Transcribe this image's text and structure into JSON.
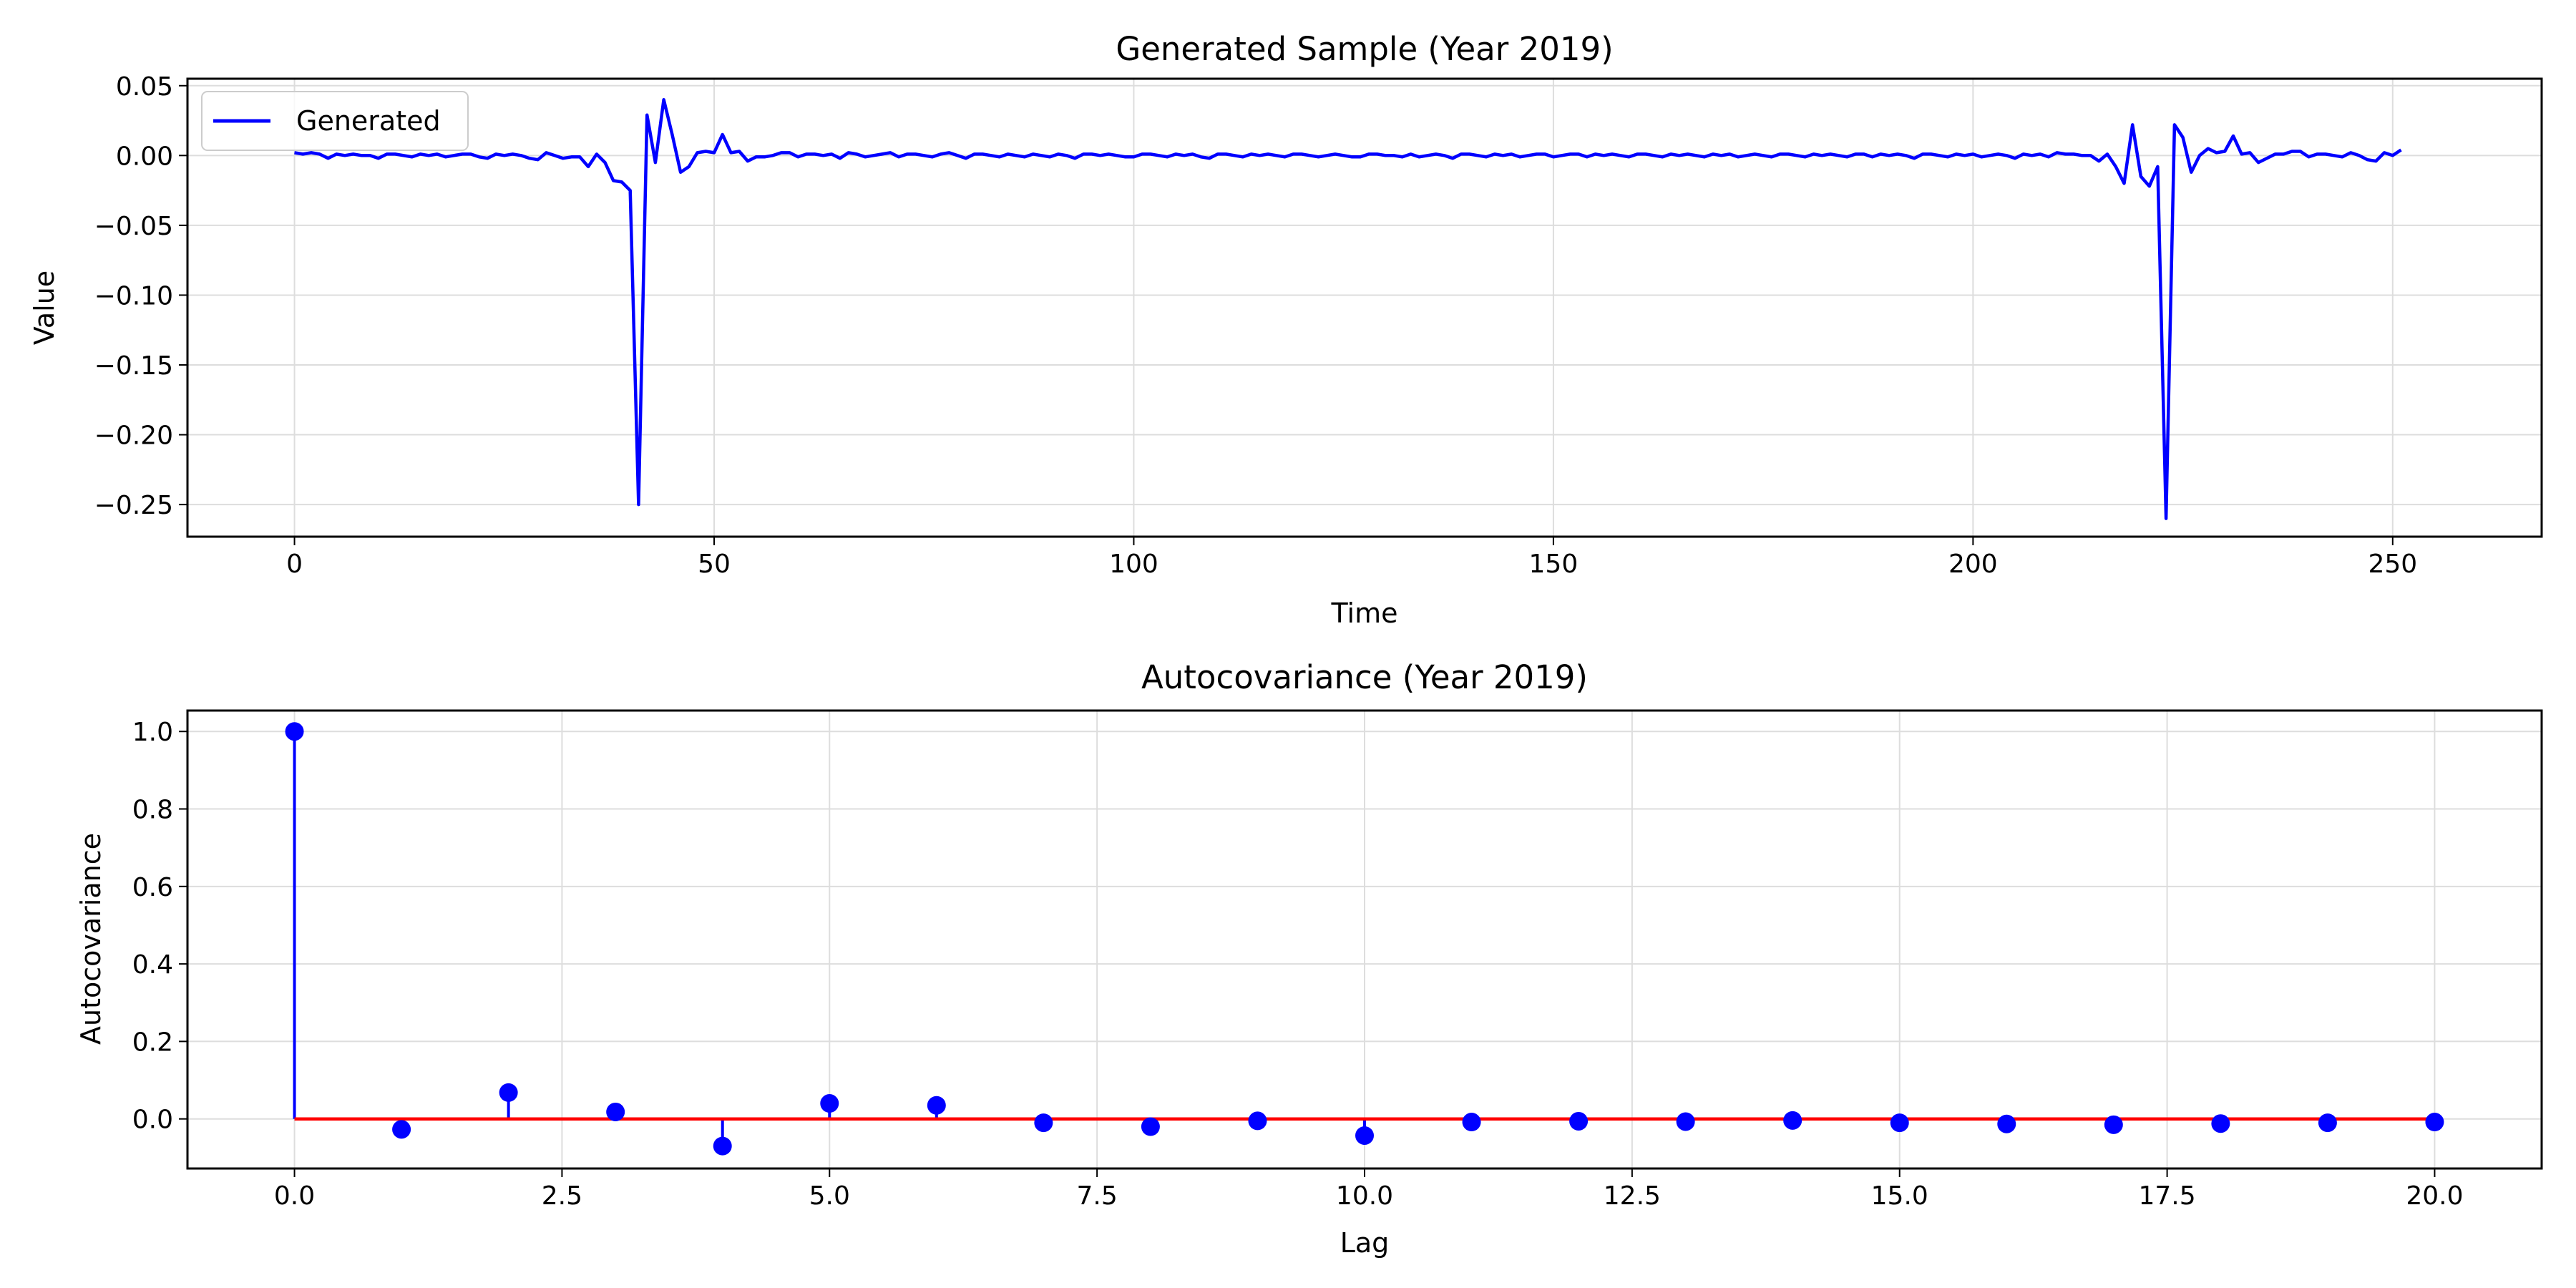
{
  "chart_data": [
    {
      "type": "line",
      "title": "Generated Sample (Year 2019)",
      "xlabel": "Time",
      "ylabel": "Value",
      "xlim": [
        -12.75,
        267.75
      ],
      "ylim": [
        -0.273,
        0.055
      ],
      "xticks": [
        0,
        50,
        100,
        150,
        200,
        250
      ],
      "yticks": [
        -0.25,
        -0.2,
        -0.15,
        -0.1,
        -0.05,
        0.0,
        0.05
      ],
      "xtick_labels": [
        "0",
        "50",
        "100",
        "150",
        "200",
        "250"
      ],
      "ytick_labels": [
        "−0.25",
        "−0.20",
        "−0.15",
        "−0.10",
        "−0.05",
        "0.00",
        "0.05"
      ],
      "grid": true,
      "legend": {
        "location": "upper-left",
        "entries": [
          "Generated"
        ]
      },
      "colors": {
        "line": "#0000ff"
      },
      "series": [
        {
          "name": "Generated",
          "x_start": 0,
          "x_step": 1,
          "values": [
            0.002,
            0.001,
            0.002,
            0.001,
            -0.002,
            0.001,
            0.0,
            0.001,
            0.0,
            0.0,
            -0.002,
            0.001,
            0.001,
            0.0,
            -0.001,
            0.001,
            0.0,
            0.001,
            -0.001,
            0.0,
            0.001,
            0.001,
            -0.001,
            -0.002,
            0.001,
            0.0,
            0.001,
            0.0,
            -0.002,
            -0.003,
            0.002,
            0.0,
            -0.002,
            -0.001,
            -0.001,
            -0.008,
            0.001,
            -0.005,
            -0.018,
            -0.019,
            -0.025,
            -0.25,
            0.029,
            -0.005,
            0.04,
            0.015,
            -0.012,
            -0.008,
            0.002,
            0.003,
            0.002,
            0.015,
            0.002,
            0.003,
            -0.004,
            -0.001,
            -0.001,
            0.0,
            0.002,
            0.002,
            -0.001,
            0.001,
            0.001,
            0.0,
            0.001,
            -0.002,
            0.002,
            0.001,
            -0.001,
            0.0,
            0.001,
            0.002,
            -0.001,
            0.001,
            0.001,
            0.0,
            -0.001,
            0.001,
            0.002,
            0.0,
            -0.002,
            0.001,
            0.001,
            0.0,
            -0.001,
            0.001,
            0.0,
            -0.001,
            0.001,
            0.0,
            -0.001,
            0.001,
            0.0,
            -0.002,
            0.001,
            0.001,
            0.0,
            0.001,
            0.0,
            -0.001,
            -0.001,
            0.001,
            0.001,
            0.0,
            -0.001,
            0.001,
            0.0,
            0.001,
            -0.001,
            -0.002,
            0.001,
            0.001,
            0.0,
            -0.001,
            0.001,
            0.0,
            0.001,
            0.0,
            -0.001,
            0.001,
            0.001,
            0.0,
            -0.001,
            0.0,
            0.001,
            0.0,
            -0.001,
            -0.001,
            0.001,
            0.001,
            0.0,
            0.0,
            -0.001,
            0.001,
            -0.001,
            0.0,
            0.001,
            0.0,
            -0.002,
            0.001,
            0.001,
            0.0,
            -0.001,
            0.001,
            0.0,
            0.001,
            -0.001,
            0.0,
            0.001,
            0.001,
            -0.001,
            0.0,
            0.001,
            0.001,
            -0.001,
            0.001,
            0.0,
            0.001,
            0.0,
            -0.001,
            0.001,
            0.001,
            0.0,
            -0.001,
            0.001,
            0.0,
            0.001,
            0.0,
            -0.001,
            0.001,
            0.0,
            0.001,
            -0.001,
            0.0,
            0.001,
            0.0,
            -0.001,
            0.001,
            0.001,
            0.0,
            -0.001,
            0.001,
            0.0,
            0.001,
            0.0,
            -0.001,
            0.001,
            0.001,
            -0.001,
            0.001,
            0.0,
            0.001,
            0.0,
            -0.002,
            0.001,
            0.001,
            0.0,
            -0.001,
            0.001,
            0.0,
            0.001,
            -0.001,
            0.0,
            0.001,
            0.0,
            -0.002,
            0.001,
            0.0,
            0.001,
            -0.001,
            0.002,
            0.001,
            0.001,
            0.0,
            0.0,
            -0.004,
            0.001,
            -0.008,
            -0.02,
            0.022,
            -0.015,
            -0.022,
            -0.008,
            -0.26,
            0.022,
            0.013,
            -0.012,
            0.0,
            0.005,
            0.002,
            0.003,
            0.014,
            0.001,
            0.002,
            -0.005,
            -0.002,
            0.001,
            0.001,
            0.003,
            0.003,
            -0.001,
            0.001,
            0.001,
            0.0,
            -0.001,
            0.002,
            0.0,
            -0.003,
            -0.004,
            0.002,
            0.0,
            0.004
          ]
        }
      ]
    },
    {
      "type": "stem",
      "title": "Autocovariance (Year 2019)",
      "xlabel": "Lag",
      "ylabel": "Autocovariance",
      "xlim": [
        -1.0,
        21.0
      ],
      "ylim": [
        -0.128,
        1.054
      ],
      "xticks": [
        0,
        2.5,
        5,
        7.5,
        10,
        12.5,
        15,
        17.5,
        20
      ],
      "yticks": [
        0,
        0.2,
        0.4,
        0.6,
        0.8,
        1.0
      ],
      "xtick_labels": [
        "0.0",
        "2.5",
        "5.0",
        "7.5",
        "10.0",
        "12.5",
        "15.0",
        "17.5",
        "20.0"
      ],
      "ytick_labels": [
        "0.0",
        "0.2",
        "0.4",
        "0.6",
        "0.8",
        "1.0"
      ],
      "grid": true,
      "colors": {
        "stem": "#0000ff",
        "marker": "#0000ff",
        "baseline": "#ff0000"
      },
      "x": [
        0,
        1,
        2,
        3,
        4,
        5,
        6,
        7,
        8,
        9,
        10,
        11,
        12,
        13,
        14,
        15,
        16,
        17,
        18,
        19,
        20
      ],
      "values": [
        1.0,
        -0.027,
        0.068,
        0.018,
        -0.07,
        0.04,
        0.035,
        -0.01,
        -0.02,
        -0.005,
        -0.043,
        -0.008,
        -0.006,
        -0.007,
        -0.004,
        -0.01,
        -0.013,
        -0.015,
        -0.012,
        -0.01,
        -0.008
      ]
    }
  ]
}
